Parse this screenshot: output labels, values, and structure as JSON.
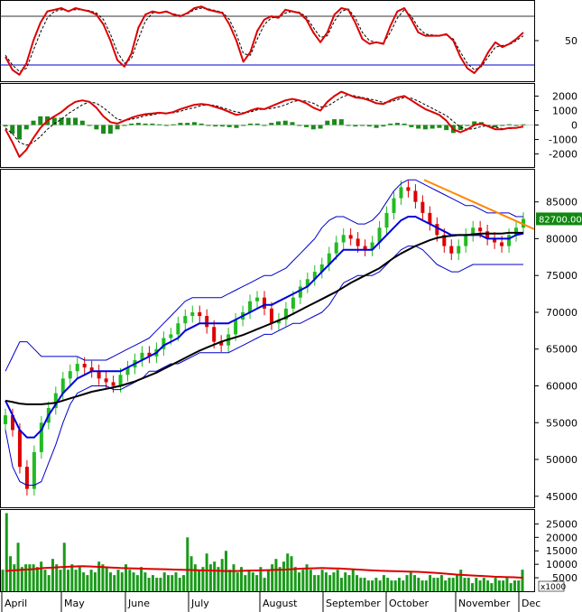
{
  "chart_data": [
    {
      "type": "line",
      "panel": "stochastic",
      "y_ticks": [
        50
      ],
      "reference_lines": [
        80,
        20
      ],
      "series": [
        {
          "values": [
            30,
            14,
            8,
            22,
            50,
            72,
            86,
            88,
            90,
            86,
            90,
            88,
            86,
            82,
            70,
            50,
            26,
            18,
            34,
            66,
            82,
            86,
            84,
            86,
            82,
            80,
            84,
            90,
            92,
            88,
            86,
            84,
            70,
            50,
            24,
            36,
            62,
            76,
            80,
            78,
            88,
            86,
            84,
            76,
            60,
            48,
            60,
            82,
            90,
            88,
            72,
            52,
            46,
            48,
            46,
            68,
            86,
            90,
            76,
            60,
            56,
            56,
            56,
            58,
            50,
            30,
            16,
            10,
            20,
            36,
            48,
            42,
            46,
            52,
            60
          ]
        },
        {
          "values": [
            32,
            20,
            12,
            16,
            38,
            60,
            78,
            86,
            88,
            87,
            88,
            88,
            87,
            84,
            76,
            58,
            36,
            22,
            28,
            52,
            74,
            84,
            85,
            85,
            83,
            81,
            83,
            88,
            90,
            89,
            87,
            85,
            76,
            58,
            34,
            32,
            52,
            70,
            78,
            79,
            84,
            86,
            85,
            79,
            66,
            54,
            56,
            74,
            86,
            89,
            78,
            60,
            50,
            48,
            47,
            60,
            78,
            88,
            80,
            66,
            58,
            57,
            56,
            57,
            52,
            36,
            22,
            14,
            18,
            30,
            42,
            44,
            45,
            50,
            56
          ]
        }
      ]
    },
    {
      "type": "line",
      "panel": "macd",
      "y_ticks": [
        2000,
        1000,
        0,
        -1000,
        -2000
      ],
      "series": [
        {
          "values": [
            -300,
            -1200,
            -2200,
            -1700,
            -900,
            -200,
            300,
            600,
            900,
            1300,
            1600,
            1700,
            1600,
            1200,
            600,
            200,
            100,
            300,
            500,
            650,
            750,
            800,
            850,
            800,
            900,
            1100,
            1250,
            1400,
            1450,
            1400,
            1250,
            1100,
            900,
            700,
            800,
            1000,
            1150,
            1100,
            1300,
            1500,
            1700,
            1800,
            1700,
            1500,
            1200,
            1000,
            1600,
            2000,
            2300,
            2100,
            1900,
            1850,
            1700,
            1500,
            1450,
            1700,
            1900,
            2000,
            1700,
            1400,
            1100,
            900,
            700,
            300,
            -300,
            -500,
            -300,
            0,
            100,
            -100,
            -300,
            -300,
            -200,
            -200,
            -100
          ]
        },
        {
          "values": [
            -200,
            -600,
            -1200,
            -1400,
            -1200,
            -800,
            -300,
            100,
            400,
            800,
            1100,
            1400,
            1600,
            1500,
            1200,
            800,
            400,
            300,
            400,
            500,
            650,
            700,
            800,
            850,
            850,
            950,
            1100,
            1200,
            1350,
            1400,
            1350,
            1200,
            1050,
            900,
            850,
            900,
            1050,
            1100,
            1150,
            1250,
            1400,
            1600,
            1700,
            1650,
            1500,
            1250,
            1300,
            1600,
            1900,
            2100,
            2000,
            1900,
            1800,
            1700,
            1550,
            1600,
            1750,
            1900,
            1850,
            1650,
            1400,
            1150,
            900,
            650,
            250,
            -150,
            -300,
            -250,
            -100,
            -50,
            -150,
            -250,
            -250,
            -200,
            -150
          ]
        },
        {
          "values": [
            -100,
            -600,
            -1000,
            -300,
            300,
            600,
            600,
            500,
            500,
            500,
            500,
            300,
            0,
            -300,
            -600,
            -600,
            -300,
            0,
            100,
            150,
            100,
            100,
            50,
            -50,
            50,
            150,
            150,
            200,
            100,
            0,
            -100,
            -100,
            -150,
            -200,
            -50,
            100,
            100,
            0,
            150,
            250,
            300,
            200,
            0,
            -150,
            -300,
            -250,
            300,
            400,
            400,
            0,
            -100,
            -50,
            -100,
            -200,
            -100,
            100,
            150,
            100,
            -150,
            -250,
            -300,
            -250,
            -200,
            -350,
            -550,
            -350,
            0,
            250,
            200,
            -50,
            -150,
            -50,
            50,
            0,
            50
          ]
        }
      ]
    },
    {
      "type": "candlestick",
      "panel": "price",
      "y_ticks": [
        85000,
        80000,
        75000,
        70000,
        65000,
        60000,
        55000,
        50000,
        45000
      ],
      "last_price": "82700.00",
      "x_labels": [
        "April",
        "May",
        "June",
        "July",
        "August",
        "September",
        "October",
        "November",
        "Dec"
      ],
      "close": [
        56000,
        54000,
        49000,
        46000,
        51000,
        55000,
        57000,
        59000,
        61000,
        62000,
        63000,
        62500,
        62000,
        61000,
        60500,
        60000,
        61500,
        62500,
        63500,
        64500,
        64000,
        65000,
        66500,
        67000,
        68500,
        69500,
        70000,
        69500,
        68000,
        66000,
        65500,
        67000,
        69000,
        70000,
        71500,
        72000,
        70500,
        68500,
        69000,
        70500,
        72000,
        73500,
        74500,
        75500,
        76500,
        78000,
        79500,
        80500,
        80000,
        79000,
        78500,
        79500,
        81500,
        83500,
        85500,
        87000,
        86500,
        85000,
        83500,
        82000,
        80500,
        79000,
        78000,
        79000,
        80500,
        81500,
        81000,
        80000,
        79500,
        79000,
        80500,
        81500,
        82700
      ],
      "upper_band": [
        62000,
        64000,
        66000,
        66000,
        65000,
        64000,
        64000,
        64000,
        64000,
        64000,
        64000,
        63500,
        63500,
        63500,
        63500,
        64000,
        64500,
        65000,
        65500,
        66000,
        66500,
        67500,
        68500,
        69500,
        70500,
        71500,
        72000,
        72000,
        72000,
        72000,
        72000,
        72500,
        73000,
        73500,
        74000,
        74500,
        75000,
        75000,
        75500,
        76000,
        77000,
        78000,
        79000,
        80000,
        81500,
        82500,
        83000,
        83000,
        82500,
        82000,
        82000,
        82500,
        83500,
        85000,
        86500,
        87500,
        88000,
        88000,
        87500,
        87000,
        86500,
        86000,
        85500,
        85000,
        84500,
        84500,
        84000,
        83500,
        83500,
        83500,
        83500,
        83000,
        83000
      ],
      "middle_band": [
        58000,
        56000,
        54000,
        53000,
        53000,
        54000,
        56000,
        57500,
        59000,
        60000,
        61000,
        61500,
        62000,
        62000,
        62000,
        62000,
        62000,
        62500,
        63000,
        63500,
        64000,
        64500,
        65500,
        66000,
        66500,
        67500,
        68000,
        68500,
        68500,
        68500,
        68500,
        68500,
        69000,
        69500,
        70000,
        70500,
        71000,
        71000,
        71500,
        72000,
        72500,
        73000,
        73500,
        74500,
        75500,
        76500,
        77500,
        78500,
        78500,
        78500,
        78500,
        78500,
        79500,
        80500,
        81500,
        82500,
        83000,
        83000,
        82500,
        82000,
        81500,
        81000,
        80500,
        80500,
        80500,
        80500,
        80500,
        80000,
        80000,
        80000,
        80000,
        80500,
        80700
      ],
      "lower_band": [
        54000,
        49000,
        47000,
        46500,
        46500,
        47000,
        49500,
        52000,
        55000,
        57500,
        59000,
        59500,
        60000,
        60000,
        60000,
        59500,
        59500,
        60000,
        60500,
        61000,
        62000,
        62000,
        62500,
        63000,
        63000,
        63500,
        64000,
        64500,
        64500,
        64500,
        64500,
        64500,
        65000,
        65500,
        66000,
        66500,
        67000,
        67000,
        67500,
        68000,
        68500,
        68500,
        69000,
        69500,
        70000,
        71000,
        72500,
        74000,
        74500,
        75000,
        75000,
        75000,
        75500,
        76500,
        77500,
        78500,
        79000,
        79000,
        78500,
        77500,
        76500,
        76000,
        75500,
        75500,
        76000,
        76500,
        76500,
        76500,
        76500,
        76500,
        76500,
        76500,
        76500
      ],
      "moving_average": [
        58000,
        57800,
        57600,
        57500,
        57500,
        57500,
        57600,
        57700,
        58000,
        58300,
        58600,
        58900,
        59200,
        59400,
        59600,
        59800,
        60000,
        60300,
        60600,
        61000,
        61400,
        61800,
        62300,
        62800,
        63300,
        63800,
        64300,
        64800,
        65200,
        65600,
        66000,
        66300,
        66600,
        66900,
        67300,
        67700,
        68100,
        68500,
        68900,
        69300,
        69800,
        70300,
        70800,
        71300,
        71800,
        72300,
        72800,
        73400,
        74000,
        74500,
        75000,
        75500,
        76000,
        76700,
        77400,
        78000,
        78500,
        79000,
        79400,
        79800,
        80100,
        80300,
        80400,
        80500,
        80500,
        80600,
        80700,
        80700,
        80700,
        80700,
        80800,
        80800,
        80800
      ],
      "trendline": {
        "from": 88000,
        "to": 81300
      }
    },
    {
      "type": "bar",
      "panel": "volume",
      "y_ticks": [
        25000,
        20000,
        15000,
        10000,
        5000
      ],
      "unit": "x1000",
      "values": [
        8000,
        29000,
        13000,
        10000,
        18000,
        9000,
        10000,
        10000,
        10000,
        9000,
        11000,
        8000,
        6000,
        12000,
        10000,
        8000,
        18000,
        8000,
        10000,
        8000,
        9000,
        7000,
        6000,
        8000,
        7000,
        11000,
        10000,
        9000,
        7000,
        6000,
        8000,
        7000,
        10000,
        8000,
        7000,
        6000,
        9000,
        7000,
        5000,
        6000,
        5000,
        5000,
        7000,
        6000,
        6000,
        7000,
        5000,
        6000,
        20000,
        13000,
        10000,
        8000,
        9000,
        14000,
        10000,
        11000,
        9000,
        12000,
        15000,
        8000,
        10000,
        7000,
        9000,
        6000,
        8000,
        7000,
        6000,
        9000,
        5000,
        8000,
        10000,
        12000,
        9000,
        11000,
        14000,
        13000,
        9000,
        7000,
        8000,
        10000,
        8000,
        6000,
        6000,
        8000,
        7000,
        6000,
        7000,
        8000,
        5000,
        7000,
        6000,
        8000,
        6000,
        5000,
        5000,
        4000,
        4000,
        5000,
        4000,
        6000,
        5000,
        4000,
        4000,
        5000,
        4000,
        6000,
        7000,
        6000,
        5000,
        4000,
        4000,
        6000,
        5000,
        5000,
        6000,
        4000,
        5000,
        5000,
        6000,
        8000,
        5000,
        5000,
        3000,
        5000,
        4000,
        5000,
        4000,
        3000,
        5000,
        4000,
        4000,
        5000,
        3000,
        4000,
        4000,
        8000
      ],
      "volume_ma": [
        7500,
        7800,
        8000,
        8200,
        8600,
        8800,
        9000,
        9200,
        9300,
        9200,
        9000,
        8800,
        8600,
        8500,
        8400,
        8300,
        8200,
        8100,
        8000,
        7900,
        7800,
        7700,
        7600,
        7500,
        7500,
        7600,
        7700,
        7800,
        7900,
        8000,
        8200,
        8400,
        8500,
        8600,
        8500,
        8400,
        8200,
        8000,
        7800,
        7600,
        7500,
        7400,
        7300,
        7200,
        7000,
        6800,
        6500,
        6200,
        6000,
        5800,
        5600,
        5400,
        5300,
        5200,
        5000
      ]
    }
  ]
}
